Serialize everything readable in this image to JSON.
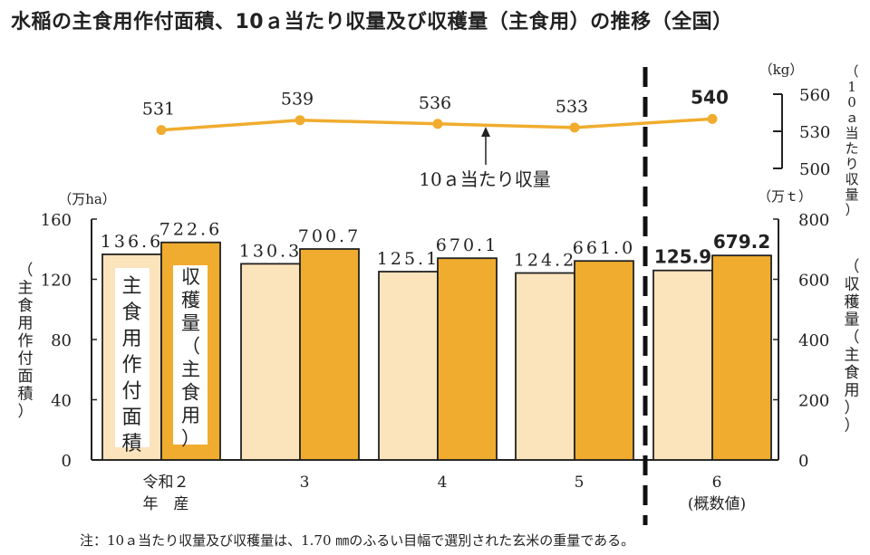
{
  "title": "水稲の主食用作付面積、10ａ当たり収量及び収穫量（主食用）の推移（全国）",
  "note": "注：10ａ当たり収量及び収穫量は、1.70 ㎜のふるい目幅で選別された玄米の重量である。",
  "colors": {
    "area": "#fbe3bb",
    "harvest": "#f0ac2e",
    "line": "#f0ac2e"
  },
  "chart_data": [
    {
      "type": "bar",
      "categories": [
        "令和２\n年　産",
        "3",
        "4",
        "5",
        "6\n(概数値)"
      ],
      "series": [
        {
          "name": "主食用作付面積",
          "unit": "万ha",
          "values": [
            136.6,
            130.3,
            125.1,
            124.2,
            125.9
          ],
          "labels": [
            "136.6",
            "130.3",
            "125.1",
            "124.2",
            "125.9"
          ]
        },
        {
          "name": "収穫量（主食用）",
          "unit": "万ｔ",
          "values": [
            722.6,
            700.7,
            670.1,
            661.0,
            679.2
          ],
          "labels": [
            "722.6",
            "700.7",
            "670.1",
            "661.0",
            "679.2"
          ]
        }
      ],
      "y_left": {
        "label": "（主食用作付面積）",
        "unit": "（万ha）",
        "ylim": [
          0,
          160
        ],
        "ticks": [
          "0",
          "40",
          "80",
          "120",
          "160"
        ]
      },
      "y_right": {
        "label": "（収穫量（主食用））",
        "unit": "（万ｔ）",
        "ylim": [
          0,
          800
        ],
        "ticks": [
          "0",
          "200",
          "400",
          "600",
          "800"
        ]
      }
    },
    {
      "type": "line",
      "series": [
        {
          "name": "10ａ当たり収量",
          "values": [
            531,
            539,
            536,
            533,
            540
          ],
          "labels": [
            "531",
            "539",
            "536",
            "533",
            "540"
          ]
        }
      ],
      "y_right": {
        "label": "（10ａ当たり収量）",
        "unit": "（kg）",
        "ylim": [
          500,
          560
        ],
        "ticks": [
          "500",
          "530",
          "560"
        ]
      },
      "annotation": "10ａ当たり収量"
    }
  ]
}
